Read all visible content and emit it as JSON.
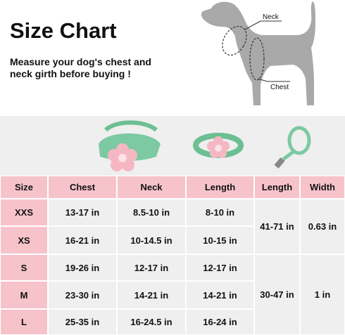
{
  "header": {
    "title": "Size Chart",
    "subtitle": [
      "Measure your dog's chest and",
      "neck girth before buying !"
    ]
  },
  "diagram": {
    "neck_label": "Neck",
    "chest_label": "Chest"
  },
  "table": {
    "columns": [
      "Size",
      "Chest",
      "Neck",
      "Length",
      "Length",
      "Width"
    ],
    "rows": [
      [
        "XXS",
        "13-17 in",
        "8.5-10 in",
        "8-10 in"
      ],
      [
        "XS",
        "16-21 in",
        "10-14.5 in",
        "10-15 in"
      ],
      [
        "S",
        "19-26 in",
        "12-17 in",
        "12-17 in"
      ],
      [
        "M",
        "23-30 in",
        "14-21 in",
        "14-21 in"
      ],
      [
        "L",
        "25-35 in",
        "16-24.5 in",
        "16-24 in"
      ]
    ],
    "leash": [
      [
        "41-71 in",
        "0.63 in"
      ],
      [
        "30-47 in",
        "1 in"
      ]
    ]
  }
}
